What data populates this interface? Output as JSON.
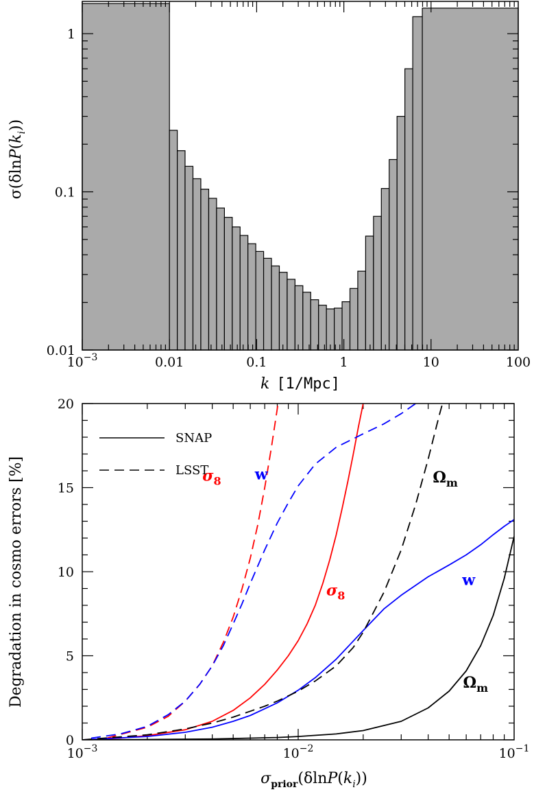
{
  "chart_data": [
    {
      "type": "bar",
      "title": "",
      "xscale": "log",
      "yscale": "log",
      "xlim": [
        0.001,
        100
      ],
      "ylim": [
        0.01,
        1.6
      ],
      "xlabel": {
        "var": "k",
        "unit": "[1/Mpc]"
      },
      "ylabel": {
        "pre": "σ(δln",
        "var": "P",
        "mid": "(",
        "var2": "k",
        "sub": "i",
        "post": "))"
      },
      "xticks": [
        {
          "value": 0.001,
          "base": "10",
          "exp": "−3"
        },
        {
          "value": 0.01,
          "label": "0.01"
        },
        {
          "value": 0.1,
          "label": "0.1"
        },
        {
          "value": 1,
          "label": "1"
        },
        {
          "value": 10,
          "label": "10"
        },
        {
          "value": 100,
          "label": "100"
        }
      ],
      "yticks": [
        {
          "value": 0.01,
          "label": "0.01"
        },
        {
          "value": 0.1,
          "label": "0.1"
        },
        {
          "value": 1,
          "label": "1"
        }
      ],
      "bins": [
        {
          "x0": 0.001,
          "x1": 0.01,
          "value": 1.55
        },
        {
          "x0": 0.01,
          "x1": 0.0123,
          "value": 0.245
        },
        {
          "x0": 0.0123,
          "x1": 0.0151,
          "value": 0.182
        },
        {
          "x0": 0.0151,
          "x1": 0.0186,
          "value": 0.145
        },
        {
          "x0": 0.0186,
          "x1": 0.0229,
          "value": 0.121
        },
        {
          "x0": 0.0229,
          "x1": 0.0282,
          "value": 0.104
        },
        {
          "x0": 0.0282,
          "x1": 0.0347,
          "value": 0.091
        },
        {
          "x0": 0.0347,
          "x1": 0.0427,
          "value": 0.079
        },
        {
          "x0": 0.0427,
          "x1": 0.0525,
          "value": 0.069
        },
        {
          "x0": 0.0525,
          "x1": 0.0646,
          "value": 0.06
        },
        {
          "x0": 0.0646,
          "x1": 0.0794,
          "value": 0.053
        },
        {
          "x0": 0.0794,
          "x1": 0.0977,
          "value": 0.047
        },
        {
          "x0": 0.0977,
          "x1": 0.1202,
          "value": 0.042
        },
        {
          "x0": 0.1202,
          "x1": 0.1479,
          "value": 0.038
        },
        {
          "x0": 0.1479,
          "x1": 0.182,
          "value": 0.034
        },
        {
          "x0": 0.182,
          "x1": 0.2239,
          "value": 0.031
        },
        {
          "x0": 0.2239,
          "x1": 0.2754,
          "value": 0.028
        },
        {
          "x0": 0.2754,
          "x1": 0.3388,
          "value": 0.0255
        },
        {
          "x0": 0.3388,
          "x1": 0.4169,
          "value": 0.0232
        },
        {
          "x0": 0.4169,
          "x1": 0.5129,
          "value": 0.0208
        },
        {
          "x0": 0.5129,
          "x1": 0.631,
          "value": 0.0192
        },
        {
          "x0": 0.631,
          "x1": 0.7762,
          "value": 0.0182
        },
        {
          "x0": 0.7762,
          "x1": 0.955,
          "value": 0.0184
        },
        {
          "x0": 0.955,
          "x1": 1.175,
          "value": 0.0202
        },
        {
          "x0": 1.175,
          "x1": 1.445,
          "value": 0.0245
        },
        {
          "x0": 1.445,
          "x1": 1.778,
          "value": 0.0315
        },
        {
          "x0": 1.778,
          "x1": 2.188,
          "value": 0.0525
        },
        {
          "x0": 2.188,
          "x1": 2.692,
          "value": 0.07
        },
        {
          "x0": 2.692,
          "x1": 3.311,
          "value": 0.105
        },
        {
          "x0": 3.311,
          "x1": 4.074,
          "value": 0.16
        },
        {
          "x0": 4.074,
          "x1": 5.012,
          "value": 0.3
        },
        {
          "x0": 5.012,
          "x1": 6.166,
          "value": 0.6
        },
        {
          "x0": 6.166,
          "x1": 7.943,
          "value": 1.28
        },
        {
          "x0": 7.943,
          "x1": 100,
          "value": 1.45
        }
      ]
    },
    {
      "type": "line",
      "title": "",
      "xscale": "log",
      "xlim": [
        0.001,
        0.1
      ],
      "ylim": [
        0,
        20
      ],
      "xlabel": {
        "pre": "σ",
        "sub": "prior",
        "mid": "(δln",
        "var": "P",
        "mid2": "(",
        "var2": "k",
        "sub2": "i",
        "post": "))"
      },
      "ylabel": "Degradation in cosmo errors [%]",
      "xticks": [
        {
          "value": 0.001,
          "base": "10",
          "exp": "−3"
        },
        {
          "value": 0.01,
          "base": "10",
          "exp": "−2"
        },
        {
          "value": 0.1,
          "base": "10",
          "exp": "−1"
        }
      ],
      "yticks": [
        {
          "value": 0,
          "label": "0"
        },
        {
          "value": 5,
          "label": "5"
        },
        {
          "value": 10,
          "label": "10"
        },
        {
          "value": 15,
          "label": "15"
        },
        {
          "value": 20,
          "label": "20"
        }
      ],
      "legend": {
        "position": "top-left",
        "entries": [
          {
            "label": "SNAP",
            "dash": "solid"
          },
          {
            "label": "LSST",
            "dash": "dashed"
          }
        ]
      },
      "series": [
        {
          "color": "#ff0000",
          "dash": "solid",
          "x": [
            0.001,
            0.0015,
            0.002,
            0.003,
            0.004,
            0.005,
            0.006,
            0.007,
            0.008,
            0.009,
            0.01,
            0.011,
            0.012,
            0.013,
            0.014,
            0.015,
            0.016,
            0.017,
            0.018,
            0.019,
            0.02,
            0.0205
          ],
          "y": [
            0.0,
            0.1,
            0.25,
            0.6,
            1.1,
            1.75,
            2.5,
            3.3,
            4.15,
            5.0,
            5.9,
            6.9,
            8.0,
            9.3,
            10.7,
            12.2,
            13.8,
            15.4,
            17.0,
            18.6,
            20.0,
            20.6
          ]
        },
        {
          "color": "#ff0000",
          "dash": "dashed",
          "x": [
            0.0013,
            0.002,
            0.0025,
            0.003,
            0.0035,
            0.004,
            0.0045,
            0.005,
            0.0055,
            0.006,
            0.0065,
            0.007,
            0.0075,
            0.008,
            0.0082
          ],
          "y": [
            0.1,
            0.75,
            1.4,
            2.3,
            3.3,
            4.4,
            5.8,
            7.3,
            9.0,
            10.8,
            12.8,
            15.0,
            17.3,
            19.7,
            20.6
          ]
        },
        {
          "color": "#0000ff",
          "dash": "solid",
          "x": [
            0.001,
            0.002,
            0.003,
            0.004,
            0.005,
            0.006,
            0.007,
            0.008,
            0.01,
            0.012,
            0.015,
            0.02,
            0.025,
            0.03,
            0.04,
            0.05,
            0.06,
            0.07,
            0.08,
            0.09,
            0.1
          ],
          "y": [
            0.0,
            0.2,
            0.45,
            0.75,
            1.1,
            1.45,
            1.85,
            2.2,
            2.95,
            3.7,
            4.8,
            6.5,
            7.8,
            8.6,
            9.7,
            10.4,
            11.0,
            11.6,
            12.2,
            12.7,
            13.1
          ]
        },
        {
          "color": "#0000ff",
          "dash": "dashed",
          "x": [
            0.0011,
            0.0015,
            0.002,
            0.0025,
            0.003,
            0.0035,
            0.004,
            0.0045,
            0.005,
            0.0055,
            0.006,
            0.007,
            0.008,
            0.009,
            0.01,
            0.012,
            0.015,
            0.02,
            0.025,
            0.03,
            0.035
          ],
          "y": [
            0.1,
            0.35,
            0.8,
            1.5,
            2.3,
            3.3,
            4.4,
            5.6,
            6.9,
            8.1,
            9.3,
            11.3,
            12.9,
            14.1,
            15.1,
            16.4,
            17.4,
            18.2,
            18.8,
            19.4,
            20.0
          ]
        },
        {
          "color": "#000000",
          "dash": "solid",
          "x": [
            0.001,
            0.002,
            0.004,
            0.006,
            0.008,
            0.01,
            0.015,
            0.02,
            0.03,
            0.04,
            0.05,
            0.06,
            0.07,
            0.08,
            0.09,
            0.1
          ],
          "y": [
            0.0,
            0.02,
            0.05,
            0.1,
            0.14,
            0.2,
            0.35,
            0.55,
            1.1,
            1.9,
            2.9,
            4.1,
            5.6,
            7.4,
            9.6,
            12.1
          ]
        },
        {
          "color": "#000000",
          "dash": "dashed",
          "x": [
            0.001,
            0.002,
            0.003,
            0.004,
            0.005,
            0.006,
            0.007,
            0.008,
            0.01,
            0.012,
            0.015,
            0.018,
            0.02,
            0.025,
            0.03,
            0.035,
            0.04,
            0.045,
            0.0475
          ],
          "y": [
            0.0,
            0.3,
            0.65,
            1.0,
            1.35,
            1.7,
            2.0,
            2.3,
            2.9,
            3.5,
            4.4,
            5.5,
            6.4,
            8.8,
            11.3,
            14.0,
            16.7,
            19.3,
            20.4
          ]
        }
      ],
      "annotations": [
        {
          "symbol": "σ",
          "sub": "8",
          "color": "#ff0000",
          "x": 0.0036,
          "y": 15.4
        },
        {
          "symbol": "w",
          "sub": "",
          "color": "#0000ff",
          "x": 0.0063,
          "y": 15.5
        },
        {
          "symbol": "Ω",
          "sub": "m",
          "color": "#000000",
          "x": 0.042,
          "y": 15.3
        },
        {
          "symbol": "σ",
          "sub": "8",
          "color": "#ff0000",
          "x": 0.0135,
          "y": 8.6
        },
        {
          "symbol": "w",
          "sub": "",
          "color": "#0000ff",
          "x": 0.0575,
          "y": 9.2
        },
        {
          "symbol": "Ω",
          "sub": "m",
          "color": "#000000",
          "x": 0.058,
          "y": 3.1
        }
      ]
    }
  ]
}
